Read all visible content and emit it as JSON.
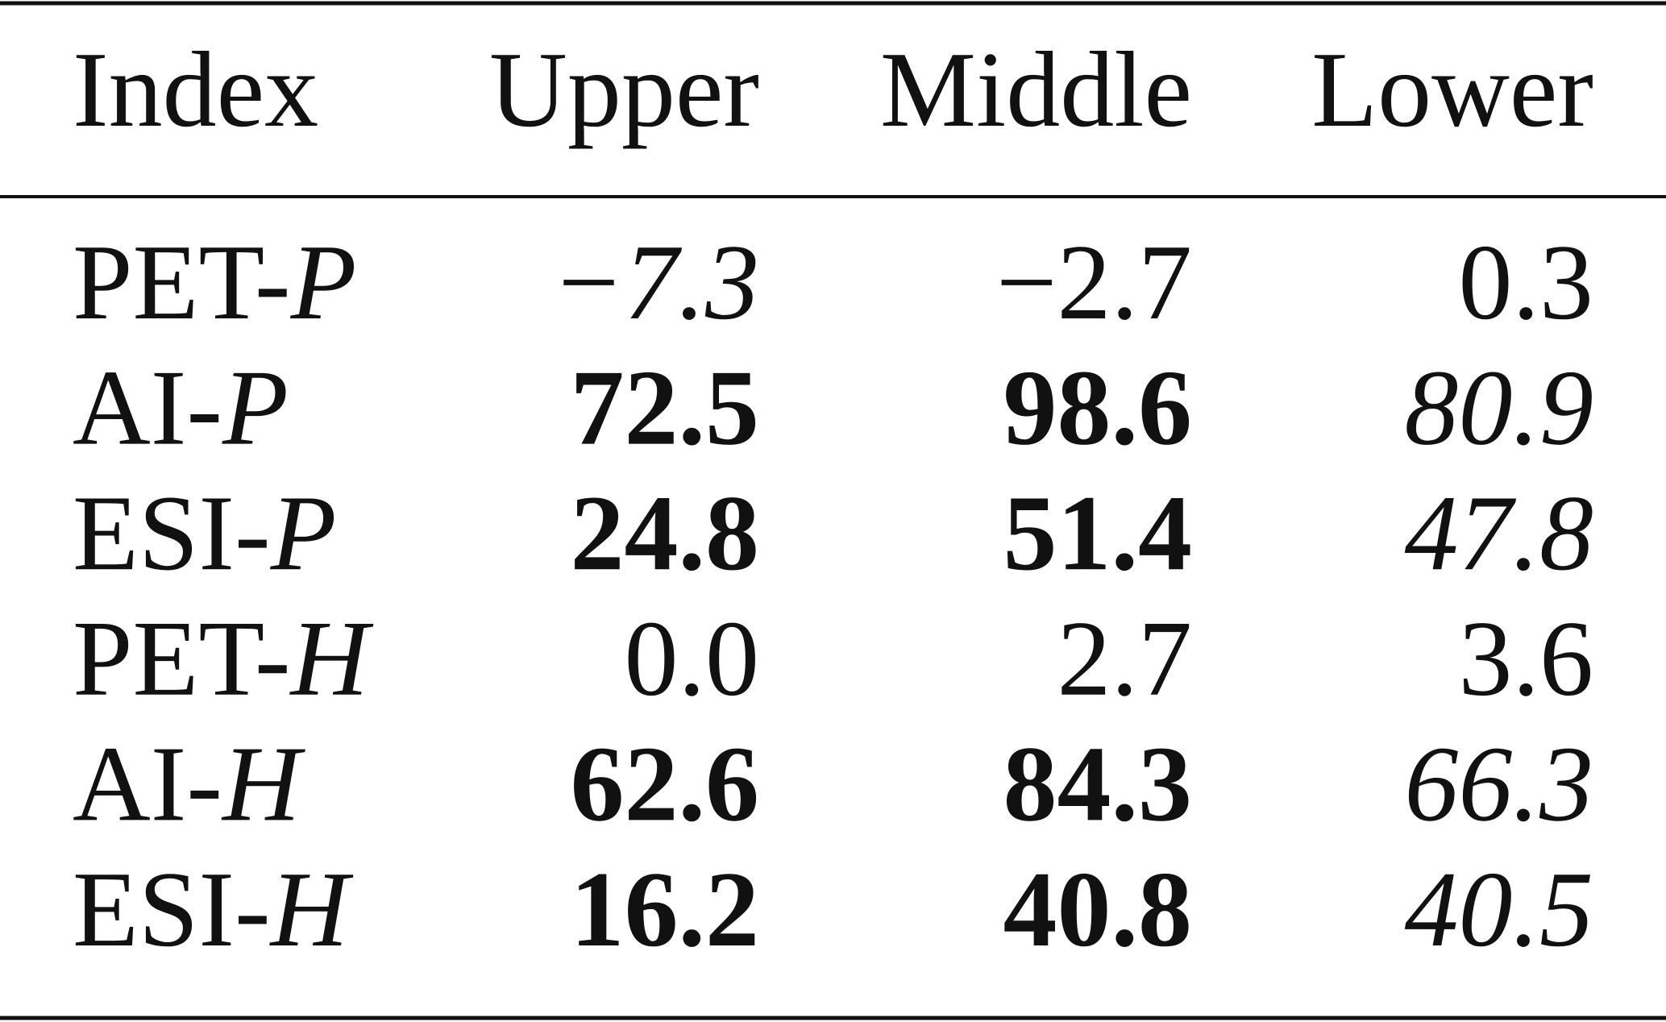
{
  "table": {
    "header": [
      "Index",
      "Upper",
      "Middle",
      "Lower"
    ],
    "rows": [
      {
        "label": {
          "prefix": "PET-",
          "symbol": "P"
        },
        "cells": [
          {
            "text": "−7.3",
            "style": "italic"
          },
          {
            "text": "−2.7",
            "style": "normal"
          },
          {
            "text": "0.3",
            "style": "normal"
          }
        ]
      },
      {
        "label": {
          "prefix": "AI-",
          "symbol": "P"
        },
        "cells": [
          {
            "text": "72.5",
            "style": "bold"
          },
          {
            "text": "98.6",
            "style": "bold"
          },
          {
            "text": "80.9",
            "style": "italic"
          }
        ]
      },
      {
        "label": {
          "prefix": "ESI-",
          "symbol": "P"
        },
        "cells": [
          {
            "text": "24.8",
            "style": "bold"
          },
          {
            "text": "51.4",
            "style": "bold"
          },
          {
            "text": "47.8",
            "style": "italic"
          }
        ]
      },
      {
        "label": {
          "prefix": "PET-",
          "symbol": "H"
        },
        "cells": [
          {
            "text": "0.0",
            "style": "normal"
          },
          {
            "text": "2.7",
            "style": "normal"
          },
          {
            "text": "3.6",
            "style": "normal"
          }
        ]
      },
      {
        "label": {
          "prefix": "AI-",
          "symbol": "H"
        },
        "cells": [
          {
            "text": "62.6",
            "style": "bold"
          },
          {
            "text": "84.3",
            "style": "bold"
          },
          {
            "text": "66.3",
            "style": "italic"
          }
        ]
      },
      {
        "label": {
          "prefix": "ESI-",
          "symbol": "H"
        },
        "cells": [
          {
            "text": "16.2",
            "style": "bold"
          },
          {
            "text": "40.8",
            "style": "bold"
          },
          {
            "text": "40.5",
            "style": "italic"
          }
        ]
      }
    ]
  }
}
